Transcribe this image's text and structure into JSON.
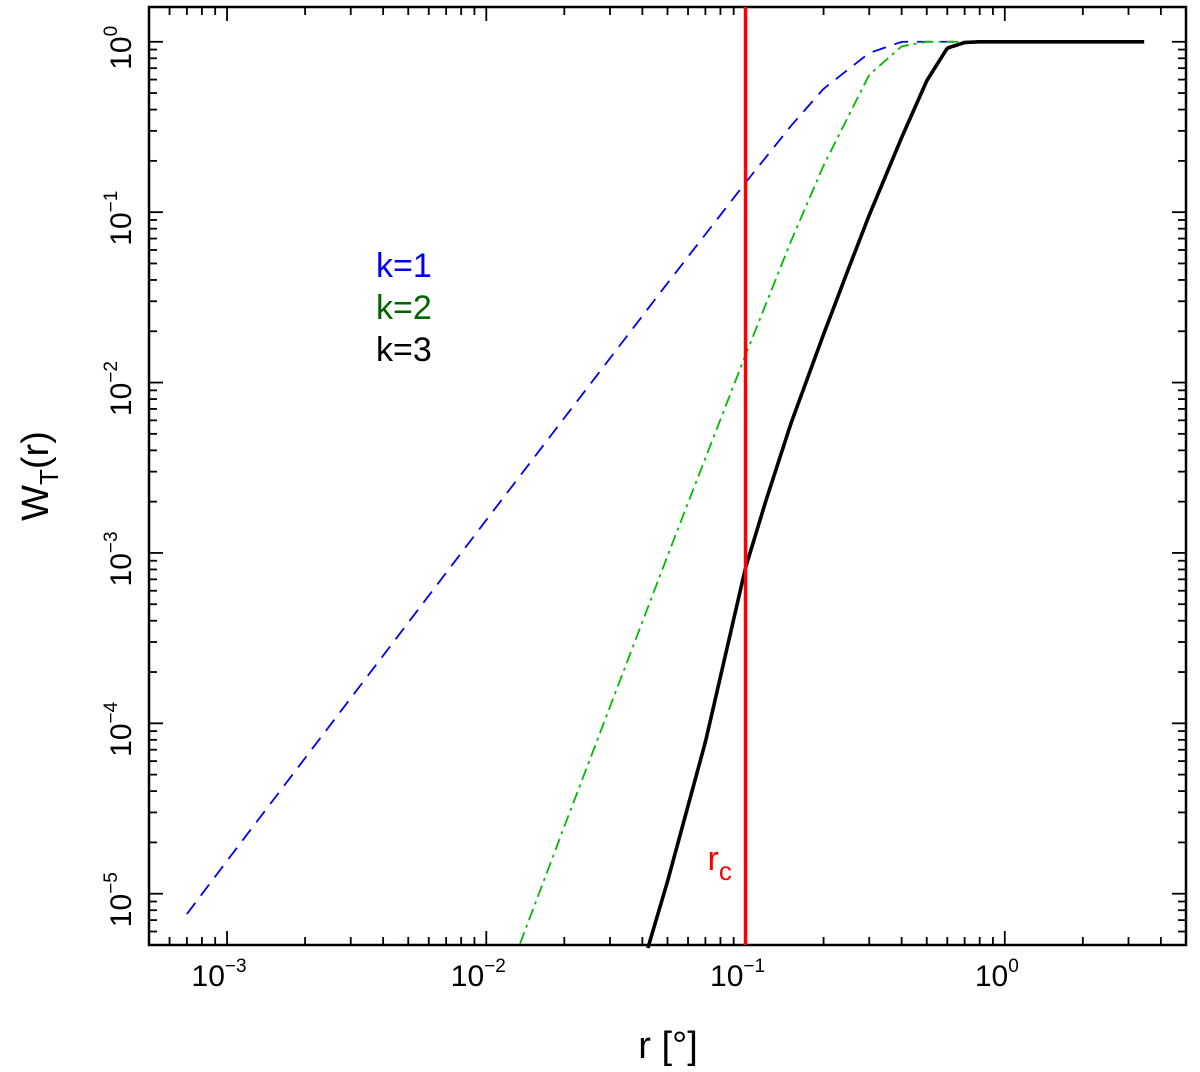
{
  "chart_data": {
    "type": "line",
    "xscale": "log",
    "yscale": "log",
    "xlim": [
      0.0005,
      5
    ],
    "ylim": [
      5e-06,
      1.6
    ],
    "xlabel": "r [°]",
    "ylabel": {
      "main": "W",
      "sub": "T",
      "tail": "(r)"
    },
    "xticks": [
      {
        "value": 0.001,
        "base": "10",
        "exp": "−3"
      },
      {
        "value": 0.01,
        "base": "10",
        "exp": "−2"
      },
      {
        "value": 0.1,
        "base": "10",
        "exp": "−1"
      },
      {
        "value": 1,
        "base": "10",
        "exp": "0"
      }
    ],
    "yticks": [
      {
        "value": 1e-05,
        "base": "10",
        "exp": "−5"
      },
      {
        "value": 0.0001,
        "base": "10",
        "exp": "−4"
      },
      {
        "value": 0.001,
        "base": "10",
        "exp": "−3"
      },
      {
        "value": 0.01,
        "base": "10",
        "exp": "−2"
      },
      {
        "value": 0.1,
        "base": "10",
        "exp": "−1"
      },
      {
        "value": 1,
        "base": "10",
        "exp": "0"
      }
    ],
    "series": [
      {
        "name": "k=1",
        "k": 1,
        "color": "#0000ee",
        "dash": "14,9",
        "x": [
          0.0007,
          0.001,
          0.002,
          0.005,
          0.01,
          0.02,
          0.05,
          0.1,
          0.15,
          0.2,
          0.3,
          0.4,
          0.5,
          0.6,
          0.7,
          0.8,
          1,
          2,
          3.5
        ],
        "y": [
          7.6e-06,
          1.56e-05,
          6.25e-05,
          0.00039,
          0.00156,
          0.0062,
          0.0383,
          0.149,
          0.322,
          0.53,
          0.859,
          1.0,
          1.0,
          1.0,
          1.0,
          1.0,
          1.0,
          1.0,
          1.0
        ]
      },
      {
        "name": "k=2",
        "k": 2,
        "color": "#00bb00",
        "dash": "12,5,3,5",
        "x": [
          0.0135,
          0.02,
          0.03,
          0.05,
          0.07,
          0.1,
          0.15,
          0.2,
          0.3,
          0.4,
          0.5,
          0.6,
          0.7,
          1,
          2,
          3.5
        ],
        "y": [
          5.1e-06,
          2.48e-05,
          0.000125,
          0.00096,
          0.0036,
          0.0145,
          0.068,
          0.188,
          0.64,
          0.94,
          1.0,
          1.0,
          1.0,
          1.0,
          1.0,
          1.0
        ]
      },
      {
        "name": "k=3",
        "k": 3,
        "color": "#000000",
        "dash": "",
        "x": [
          0.042,
          0.05,
          0.07,
          0.1,
          0.12,
          0.15,
          0.2,
          0.25,
          0.3,
          0.4,
          0.5,
          0.6,
          0.7,
          0.8,
          1,
          2,
          3.5
        ],
        "y": [
          4.8e-06,
          1.18e-05,
          7.77e-05,
          0.000818,
          0.00204,
          0.00581,
          0.0192,
          0.0469,
          0.0961,
          0.274,
          0.59,
          0.918,
          0.99,
          1.0,
          1.0,
          1.0,
          1.0
        ]
      }
    ],
    "vline": {
      "x": 0.1,
      "label": "r",
      "label_sub": "c",
      "color": "#ff0000"
    },
    "legend": [
      {
        "text": "k=1",
        "color": "#0000ee"
      },
      {
        "text": "k=2",
        "color": "#006400"
      },
      {
        "text": "k=3",
        "color": "#000000"
      }
    ],
    "legend_position": "upper-left",
    "grid": false
  }
}
